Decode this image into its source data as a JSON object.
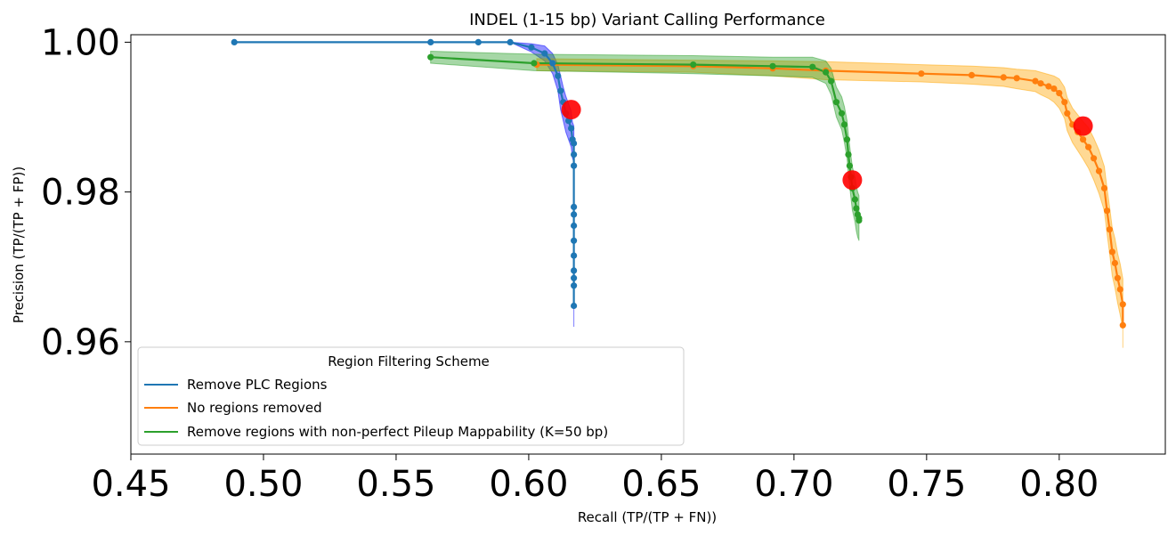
{
  "chart_data": {
    "type": "line",
    "title": "INDEL (1-15 bp) Variant Calling Performance",
    "xlabel": "Recall (TP/(TP + FN))",
    "ylabel": "Precision (TP/(TP + FP))",
    "xlim": [
      0.45,
      0.84
    ],
    "ylim": [
      0.945,
      1.001
    ],
    "xticks": [
      "0.45",
      "0.50",
      "0.55",
      "0.60",
      "0.65",
      "0.70",
      "0.75",
      "0.80"
    ],
    "yticks": [
      "0.96",
      "0.98",
      "1.00"
    ],
    "grid": false,
    "legend": {
      "title": "Region Filtering Scheme",
      "placement": "lower-left"
    },
    "series": [
      {
        "name": "Remove PLC Regions",
        "color": "#1f77b4",
        "band_color": "#0000ff",
        "x": [
          0.489,
          0.563,
          0.581,
          0.593,
          0.601,
          0.606,
          0.609,
          0.611,
          0.612,
          0.613,
          0.614,
          0.615,
          0.616,
          0.6165,
          0.617,
          0.617,
          0.617,
          0.617,
          0.617,
          0.617,
          0.617,
          0.617,
          0.617,
          0.617,
          0.617,
          0.617
        ],
        "y": [
          1.0,
          1.0,
          1.0,
          1.0,
          0.9993,
          0.9985,
          0.9972,
          0.9955,
          0.9935,
          0.992,
          0.9905,
          0.9895,
          0.9885,
          0.987,
          0.9865,
          0.985,
          0.9835,
          0.978,
          0.977,
          0.9755,
          0.9735,
          0.9715,
          0.9695,
          0.9685,
          0.9675,
          0.9648
        ],
        "band_lo": [
          1.0,
          1.0,
          1.0,
          1.0,
          0.9987,
          0.9975,
          0.9958,
          0.9935,
          0.991,
          0.9895,
          0.988,
          0.987,
          0.986,
          0.9845,
          0.984,
          0.9825,
          0.981,
          0.9755,
          0.9745,
          0.973,
          0.971,
          0.969,
          0.967,
          0.9655,
          0.964,
          0.962
        ],
        "band_hi": [
          1.0,
          1.0,
          1.0,
          1.0,
          0.9998,
          0.9995,
          0.9985,
          0.997,
          0.9955,
          0.994,
          0.9928,
          0.9918,
          0.9908,
          0.9893,
          0.9888,
          0.9873,
          0.9858,
          0.9803,
          0.9793,
          0.9778,
          0.9758,
          0.9738,
          0.9718,
          0.9708,
          0.9698,
          0.967
        ],
        "highlight": [
          0.616,
          0.991
        ]
      },
      {
        "name": "No regions removed",
        "color": "#ff7f0e",
        "band_color": "#ffa500",
        "x": [
          0.603,
          0.662,
          0.692,
          0.712,
          0.748,
          0.767,
          0.779,
          0.784,
          0.791,
          0.793,
          0.796,
          0.798,
          0.8,
          0.802,
          0.803,
          0.805,
          0.807,
          0.809,
          0.811,
          0.813,
          0.815,
          0.817,
          0.818,
          0.819,
          0.82,
          0.821,
          0.822,
          0.823,
          0.824,
          0.824
        ],
        "y": [
          0.997,
          0.9968,
          0.9965,
          0.9962,
          0.9958,
          0.9956,
          0.9953,
          0.9952,
          0.9948,
          0.9945,
          0.9941,
          0.9938,
          0.9932,
          0.992,
          0.9905,
          0.989,
          0.988,
          0.987,
          0.986,
          0.9845,
          0.9828,
          0.9805,
          0.9775,
          0.975,
          0.972,
          0.9705,
          0.9685,
          0.967,
          0.965,
          0.9622
        ],
        "band_lo": [
          0.9962,
          0.996,
          0.9955,
          0.995,
          0.9947,
          0.9944,
          0.9941,
          0.9938,
          0.9934,
          0.993,
          0.9925,
          0.992,
          0.9912,
          0.9898,
          0.9882,
          0.9866,
          0.9855,
          0.9844,
          0.9832,
          0.9816,
          0.9798,
          0.9775,
          0.9745,
          0.9718,
          0.9688,
          0.9672,
          0.9652,
          0.9636,
          0.9616,
          0.9592
        ],
        "band_hi": [
          0.9978,
          0.9976,
          0.9975,
          0.9974,
          0.997,
          0.9968,
          0.9966,
          0.9964,
          0.9962,
          0.996,
          0.9957,
          0.9955,
          0.9951,
          0.994,
          0.9926,
          0.9912,
          0.9903,
          0.9894,
          0.9886,
          0.9872,
          0.9856,
          0.9834,
          0.9805,
          0.978,
          0.9752,
          0.9738,
          0.9718,
          0.9704,
          0.9684,
          0.965
        ],
        "highlight": [
          0.809,
          0.9888
        ]
      },
      {
        "name": "Remove regions with non-perfect Pileup Mappability (K=50 bp)",
        "color": "#2ca02c",
        "band_color": "#2ca02c",
        "x": [
          0.563,
          0.602,
          0.662,
          0.692,
          0.707,
          0.712,
          0.714,
          0.716,
          0.718,
          0.719,
          0.72,
          0.7205,
          0.721,
          0.7215,
          0.722,
          0.723,
          0.7235,
          0.724,
          0.7245,
          0.7245
        ],
        "y": [
          0.998,
          0.9972,
          0.997,
          0.9968,
          0.9967,
          0.996,
          0.9948,
          0.992,
          0.9905,
          0.989,
          0.987,
          0.985,
          0.9835,
          0.982,
          0.9805,
          0.979,
          0.9778,
          0.977,
          0.9765,
          0.9762
        ],
        "band_lo": [
          0.9972,
          0.9962,
          0.9958,
          0.9955,
          0.9953,
          0.9945,
          0.993,
          0.99,
          0.9883,
          0.9866,
          0.9845,
          0.9824,
          0.9808,
          0.9792,
          0.9776,
          0.976,
          0.9748,
          0.974,
          0.9735,
          0.974
        ],
        "band_hi": [
          0.9988,
          0.9984,
          0.9982,
          0.998,
          0.998,
          0.9975,
          0.9965,
          0.994,
          0.9927,
          0.9914,
          0.9895,
          0.9876,
          0.9862,
          0.9848,
          0.9834,
          0.982,
          0.9808,
          0.98,
          0.9795,
          0.9784
        ],
        "highlight": [
          0.722,
          0.9816
        ]
      }
    ]
  }
}
